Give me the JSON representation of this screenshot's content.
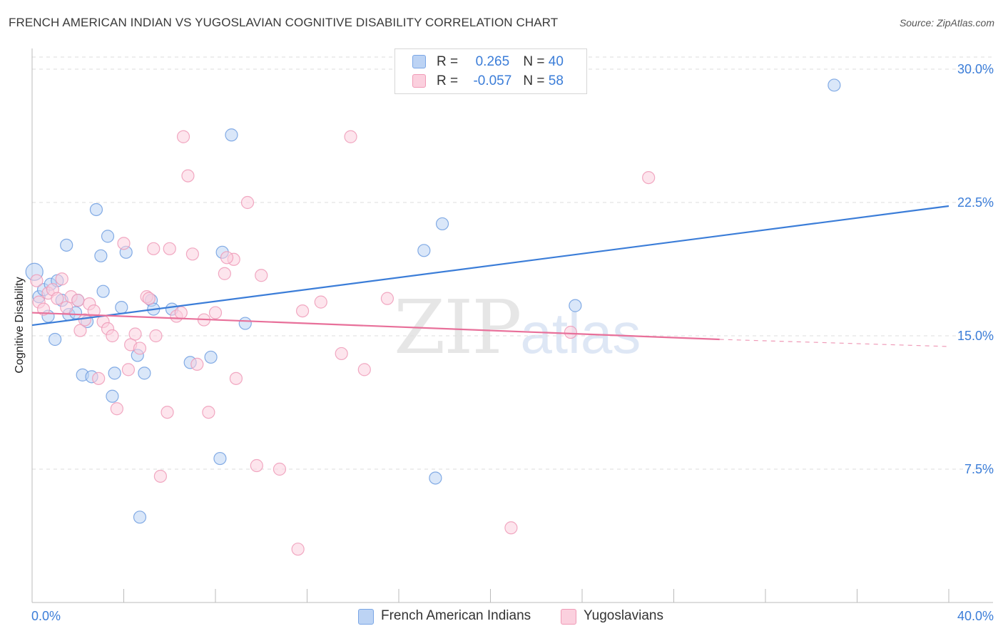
{
  "title": "FRENCH AMERICAN INDIAN VS YUGOSLAVIAN COGNITIVE DISABILITY CORRELATION CHART",
  "source": "Source: ZipAtlas.com",
  "watermark": {
    "zip": "ZIP",
    "atlas": "atlas"
  },
  "legend_top": {
    "row1": {
      "r_label": "R = ",
      "r_value": "0.265",
      "n_label": "N = ",
      "n_value": "40"
    },
    "row2": {
      "r_label": "R = ",
      "r_value": "-0.057",
      "n_label": "N = ",
      "n_value": "58"
    }
  },
  "legend_bottom": {
    "series1": "French American Indians",
    "series2": "Yugoslavians"
  },
  "colors": {
    "blue": "#3b7dd8",
    "blue_fill": "#bcd3f4",
    "pink": "#e8709a",
    "pink_fill": "#fbd0de",
    "grid": "#dddddd",
    "tick_label": "#3b7dd8"
  },
  "chart_data": {
    "type": "scatter",
    "title": "FRENCH AMERICAN INDIAN VS YUGOSLAVIAN COGNITIVE DISABILITY CORRELATION CHART",
    "xlabel": "",
    "ylabel": "Cognitive Disability",
    "xlim": [
      0,
      40
    ],
    "ylim": [
      0,
      31.0
    ],
    "x_tick_labels": [
      "0.0%",
      "40.0%"
    ],
    "y_ticks": [
      7.5,
      15.0,
      22.5,
      30.0
    ],
    "y_tick_labels": [
      "7.5%",
      "15.0%",
      "22.5%",
      "30.0%"
    ],
    "grid": "horizontal dashed",
    "legend_position": "top-center",
    "series": [
      {
        "name": "French American Indians",
        "color": "#3b7dd8",
        "r": 0.265,
        "n": 40,
        "trend": {
          "x0": 0,
          "y0": 15.6,
          "x1": 40,
          "y1": 22.3
        },
        "points": [
          [
            0.1,
            18.6
          ],
          [
            0.3,
            17.2
          ],
          [
            0.5,
            17.6
          ],
          [
            0.7,
            16.1
          ],
          [
            0.8,
            17.9
          ],
          [
            1.0,
            14.8
          ],
          [
            1.1,
            18.1
          ],
          [
            1.3,
            17.0
          ],
          [
            1.5,
            20.1
          ],
          [
            1.6,
            16.2
          ],
          [
            2.0,
            17.0
          ],
          [
            2.2,
            12.8
          ],
          [
            2.4,
            15.8
          ],
          [
            2.6,
            12.7
          ],
          [
            2.8,
            22.1
          ],
          [
            3.0,
            19.5
          ],
          [
            3.1,
            17.5
          ],
          [
            3.3,
            20.6
          ],
          [
            3.5,
            11.6
          ],
          [
            3.6,
            12.9
          ],
          [
            3.9,
            16.6
          ],
          [
            4.1,
            19.7
          ],
          [
            4.6,
            13.9
          ],
          [
            4.9,
            12.9
          ],
          [
            5.2,
            17.0
          ],
          [
            5.3,
            16.5
          ],
          [
            6.1,
            16.5
          ],
          [
            6.9,
            13.5
          ],
          [
            7.8,
            13.8
          ],
          [
            8.2,
            8.1
          ],
          [
            8.3,
            19.7
          ],
          [
            8.7,
            26.3
          ],
          [
            9.3,
            15.7
          ],
          [
            4.7,
            4.8
          ],
          [
            17.1,
            19.8
          ],
          [
            17.9,
            21.3
          ],
          [
            17.6,
            7.0
          ],
          [
            23.7,
            16.7
          ],
          [
            35.0,
            29.1
          ],
          [
            1.9,
            16.3
          ]
        ]
      },
      {
        "name": "Yugoslavians",
        "color": "#e8709a",
        "r": -0.057,
        "n": 58,
        "trend": {
          "x0": 0,
          "y0": 16.3,
          "x1": 30,
          "y1": 14.8,
          "dash_to_x": 40,
          "dash_to_y": 14.4
        },
        "points": [
          [
            0.2,
            18.1
          ],
          [
            0.3,
            16.9
          ],
          [
            0.5,
            16.5
          ],
          [
            0.7,
            17.4
          ],
          [
            0.9,
            17.6
          ],
          [
            1.1,
            17.1
          ],
          [
            1.3,
            18.2
          ],
          [
            1.5,
            16.6
          ],
          [
            1.7,
            17.2
          ],
          [
            2.0,
            17.0
          ],
          [
            2.1,
            15.3
          ],
          [
            2.3,
            15.9
          ],
          [
            2.5,
            16.8
          ],
          [
            2.7,
            16.4
          ],
          [
            2.9,
            12.6
          ],
          [
            3.1,
            15.8
          ],
          [
            3.3,
            15.4
          ],
          [
            3.5,
            15.0
          ],
          [
            3.7,
            10.9
          ],
          [
            4.0,
            20.2
          ],
          [
            4.2,
            13.1
          ],
          [
            4.3,
            14.5
          ],
          [
            4.5,
            15.1
          ],
          [
            4.7,
            14.3
          ],
          [
            5.0,
            17.2
          ],
          [
            5.1,
            17.1
          ],
          [
            5.3,
            19.9
          ],
          [
            5.4,
            15.0
          ],
          [
            5.6,
            7.1
          ],
          [
            5.9,
            10.7
          ],
          [
            6.0,
            19.9
          ],
          [
            6.3,
            16.1
          ],
          [
            6.5,
            16.3
          ],
          [
            6.6,
            26.2
          ],
          [
            6.8,
            24.0
          ],
          [
            7.0,
            19.6
          ],
          [
            7.2,
            13.4
          ],
          [
            7.5,
            15.9
          ],
          [
            7.7,
            10.7
          ],
          [
            8.0,
            16.3
          ],
          [
            8.4,
            18.5
          ],
          [
            8.8,
            19.3
          ],
          [
            8.9,
            12.6
          ],
          [
            9.4,
            22.5
          ],
          [
            9.8,
            7.7
          ],
          [
            10.0,
            18.4
          ],
          [
            10.8,
            7.5
          ],
          [
            11.6,
            3.0
          ],
          [
            11.8,
            16.4
          ],
          [
            12.6,
            16.9
          ],
          [
            13.5,
            14.0
          ],
          [
            13.9,
            26.2
          ],
          [
            14.5,
            13.1
          ],
          [
            15.5,
            17.1
          ],
          [
            20.9,
            4.2
          ],
          [
            23.5,
            15.2
          ],
          [
            26.9,
            23.9
          ],
          [
            8.5,
            19.4
          ]
        ]
      }
    ]
  }
}
